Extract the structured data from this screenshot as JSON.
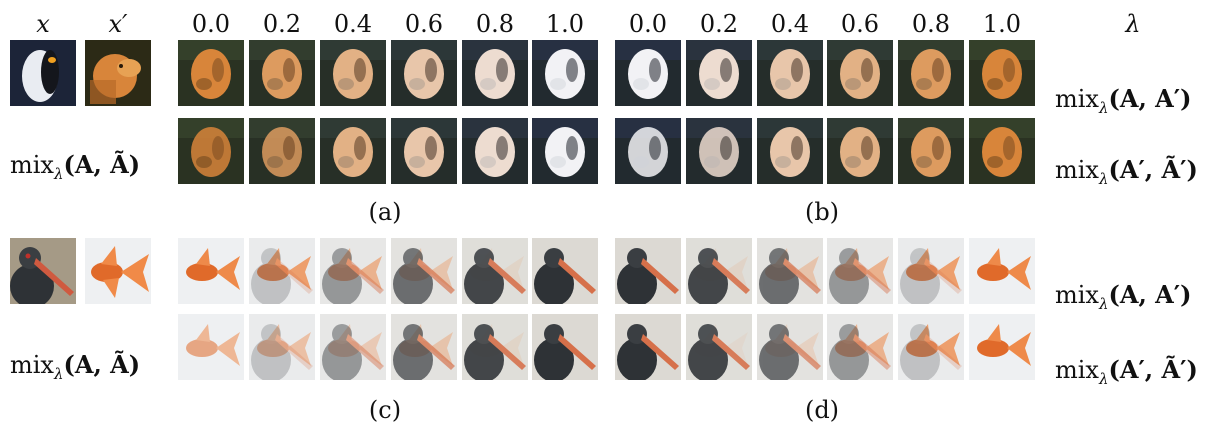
{
  "headers": {
    "x": "x",
    "x_prime": "x′",
    "lambda": "λ",
    "lambda_values_left": [
      "0.0",
      "0.2",
      "0.4",
      "0.6",
      "0.8",
      "1.0"
    ],
    "lambda_values_right": [
      "0.0",
      "0.2",
      "0.4",
      "0.6",
      "0.8",
      "1.0"
    ]
  },
  "row_labels": {
    "mix_a_tilde": {
      "prefix": "mix",
      "sub": "λ",
      "args": "(A, Ã)"
    },
    "mix_a_aprime": {
      "prefix": "mix",
      "sub": "λ",
      "args": "(A, A′)"
    },
    "mix_aprime_tilde": {
      "prefix": "mix",
      "sub": "λ",
      "args": "(A′, Ã′)"
    }
  },
  "captions": {
    "a": "(a)",
    "b": "(b)",
    "c": "(c)",
    "d": "(d)"
  },
  "colors": {
    "penguin_bg": "#1c2438",
    "dog": "#d8853a",
    "white": "#f2f2f5",
    "fish": "#e06a2a",
    "bird": "#2e3236",
    "pale_bg": "#eef0f2"
  }
}
